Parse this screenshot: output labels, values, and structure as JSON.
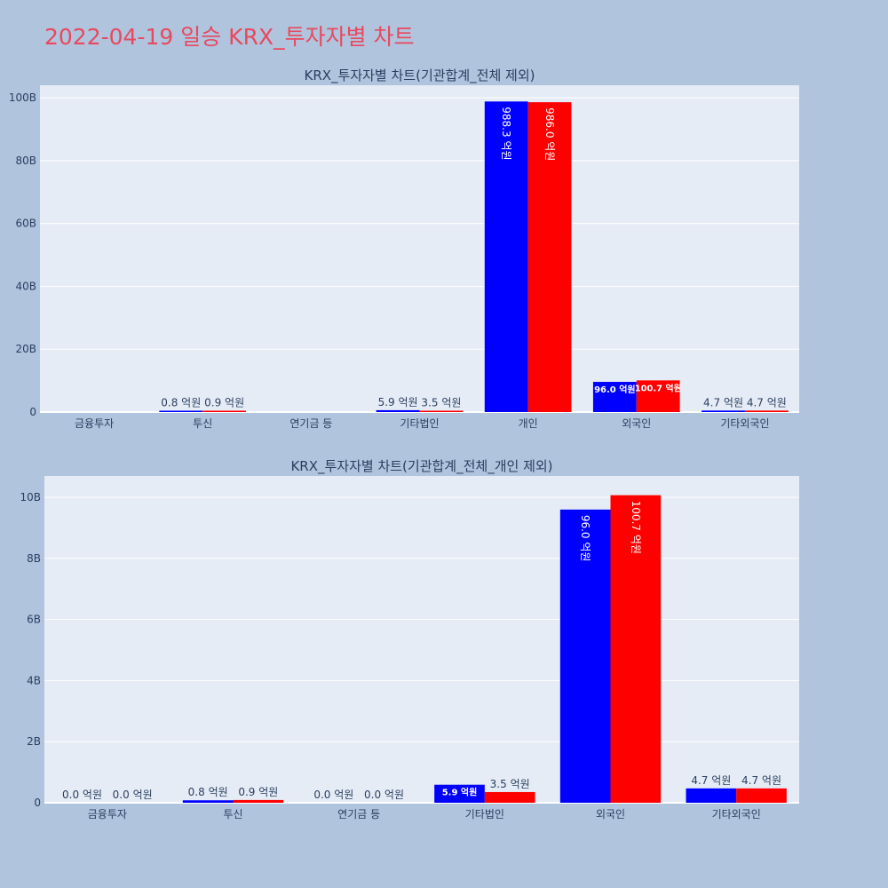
{
  "page_title": "2022-04-19 일승 KRX_투자자별 차트",
  "colors": {
    "series_a": "#0000ff",
    "series_b": "#ff0000",
    "title": "#e8495e",
    "plot_bg": "#e5ecf6",
    "page_bg": "#b0c4de",
    "text": "#2a3f5f"
  },
  "chart_data": [
    {
      "type": "bar",
      "title": "KRX_투자자별 차트(기관합계_전체 제외)",
      "categories": [
        "금융투자",
        "투신",
        "연기금 등",
        "기타법인",
        "개인",
        "외국인",
        "기타외국인"
      ],
      "series": [
        {
          "values": [
            0,
            0.08,
            0,
            0.59,
            98.83,
            9.6,
            0.47
          ],
          "labels": [
            "",
            "0.8 억원",
            "",
            "5.9 억원",
            "988.3 억원",
            "96.0 억원",
            "4.7 억원"
          ]
        },
        {
          "values": [
            0,
            0.09,
            0,
            0.35,
            98.6,
            10.07,
            0.47
          ],
          "labels": [
            "",
            "0.9 억원",
            "",
            "3.5 억원",
            "986.0 억원",
            "100.7 억원",
            "4.7 억원"
          ]
        }
      ],
      "yticks": [
        "0",
        "20B",
        "40B",
        "60B",
        "80B",
        "100B"
      ],
      "ytick_values": [
        0,
        20,
        40,
        60,
        80,
        100
      ],
      "ylim": [
        0,
        104
      ],
      "grid": true
    },
    {
      "type": "bar",
      "title": "KRX_투자자별 차트(기관합계_전체_개인 제외)",
      "categories": [
        "금융투자",
        "투신",
        "연기금 등",
        "기타법인",
        "외국인",
        "기타외국인"
      ],
      "series": [
        {
          "values": [
            0,
            0.08,
            0,
            0.59,
            9.6,
            0.47
          ],
          "labels": [
            "0.0 억원",
            "0.8 억원",
            "0.0 억원",
            "5.9 억원",
            "96.0 억원",
            "4.7 억원"
          ]
        },
        {
          "values": [
            0,
            0.09,
            0,
            0.35,
            10.07,
            0.47
          ],
          "labels": [
            "0.0 억원",
            "0.9 억원",
            "0.0 억원",
            "3.5 억원",
            "100.7 억원",
            "4.7 억원"
          ]
        }
      ],
      "yticks": [
        "0",
        "2B",
        "4B",
        "6B",
        "8B",
        "10B"
      ],
      "ytick_values": [
        0,
        2,
        4,
        6,
        8,
        10
      ],
      "ylim": [
        0,
        10.7
      ],
      "grid": true
    }
  ]
}
